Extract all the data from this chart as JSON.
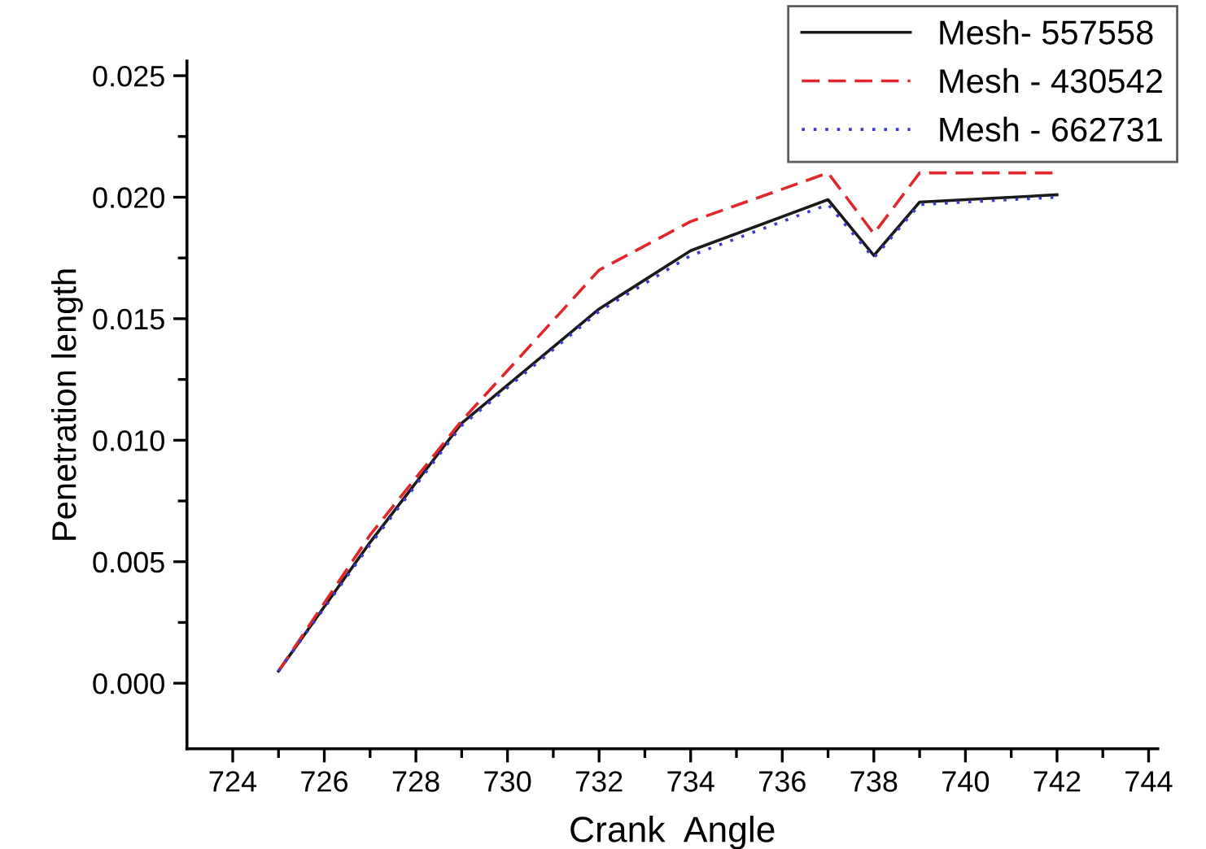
{
  "chart_data": {
    "type": "line",
    "xlabel": "Crank  Angle",
    "ylabel": "Penetration length",
    "xlim": [
      723,
      744.2
    ],
    "ylim": [
      -0.0027,
      0.0256
    ],
    "xticks": [
      724,
      726,
      728,
      730,
      732,
      734,
      736,
      738,
      740,
      742,
      744
    ],
    "yticks": [
      {
        "value": 0,
        "label": "0.000"
      },
      {
        "value": 0.005,
        "label": "0.005"
      },
      {
        "value": 0.01,
        "label": "0.010"
      },
      {
        "value": 0.015,
        "label": "0.015"
      },
      {
        "value": 0.02,
        "label": "0.020"
      },
      {
        "value": 0.025,
        "label": "0.025"
      }
    ],
    "grid": false,
    "legend": "top right",
    "marker": "none",
    "series": [
      {
        "name": "Mesh- 557558",
        "color": "#1a1a1a",
        "line_style": "solid",
        "x": [
          725,
          727,
          729,
          732,
          734,
          737,
          738,
          739,
          742
        ],
        "values": [
          0.0005,
          0.0058,
          0.0107,
          0.0154,
          0.0178,
          0.0199,
          0.0176,
          0.0198,
          0.0201
        ]
      },
      {
        "name": "Mesh - 430542",
        "color": "#e0272b",
        "line_style": "dashed",
        "x": [
          725,
          727,
          729,
          732,
          734,
          737,
          738,
          739,
          742
        ],
        "values": [
          0.0005,
          0.0061,
          0.0108,
          0.017,
          0.019,
          0.021,
          0.0185,
          0.021,
          0.021
        ]
      },
      {
        "name": "Mesh - 662731",
        "color": "#3a3ad0",
        "line_style": "dotted",
        "x": [
          725,
          727,
          729,
          732,
          734,
          737,
          738,
          739,
          742
        ],
        "values": [
          0.0005,
          0.0057,
          0.0106,
          0.0153,
          0.0176,
          0.0197,
          0.0175,
          0.0197,
          0.02
        ]
      }
    ]
  }
}
